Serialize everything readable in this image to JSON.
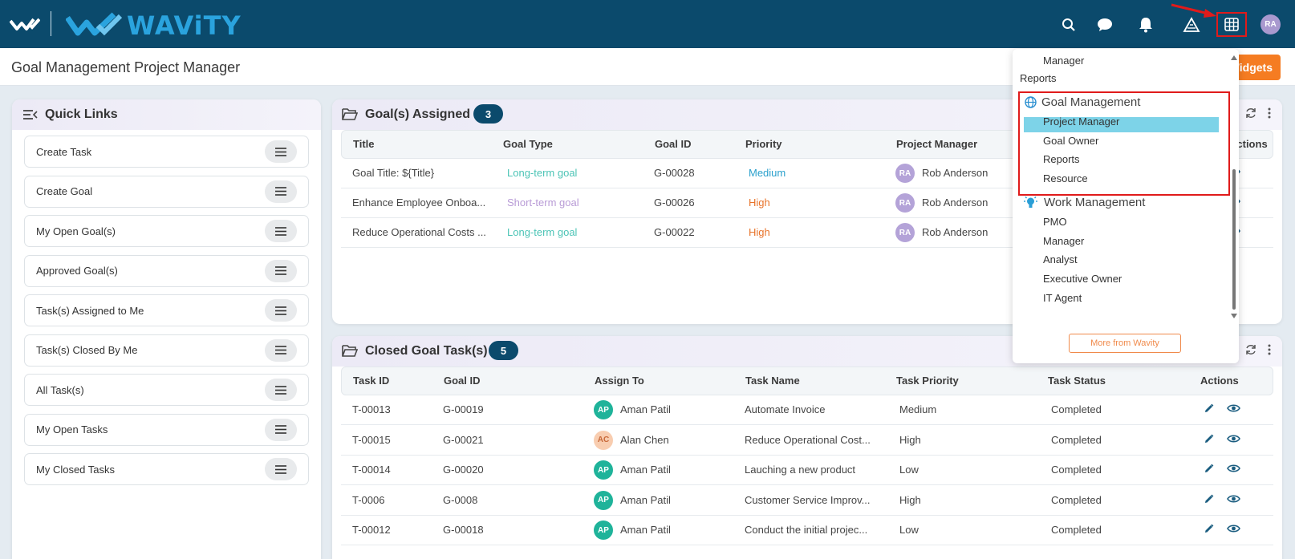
{
  "header": {
    "brand": "WAViTY",
    "icons": [
      "search-icon",
      "chat-icon",
      "bell-icon",
      "alert-triangle-icon",
      "grid-icon"
    ],
    "avatar_initials": "RA"
  },
  "subheader": {
    "page_title": "Goal Management Project Manager",
    "widgets_label": "Widgets"
  },
  "quick_links": {
    "title": "Quick Links",
    "items": [
      "Create Task",
      "Create Goal",
      "My Open Goal(s)",
      "Approved Goal(s)",
      "Task(s) Assigned to Me",
      "Task(s) Closed By Me",
      "All Task(s)",
      "My Open Tasks",
      "My Closed Tasks"
    ]
  },
  "goals_panel": {
    "title": "Goal(s) Assigned",
    "count": "3",
    "columns": [
      "Title",
      "Goal Type",
      "Goal ID",
      "Priority",
      "Project Manager",
      "Actions"
    ],
    "rows": [
      {
        "title": "Goal Title: ${Title}",
        "type": "Long-term goal",
        "id": "G-00028",
        "priority": "Medium",
        "pm_initials": "RA",
        "pm": "Rob Anderson"
      },
      {
        "title": "Enhance Employee Onboa...",
        "type": "Short-term goal",
        "id": "G-00026",
        "priority": "High",
        "pm_initials": "RA",
        "pm": "Rob Anderson"
      },
      {
        "title": "Reduce Operational Costs ...",
        "type": "Long-term goal",
        "id": "G-00022",
        "priority": "High",
        "pm_initials": "RA",
        "pm": "Rob Anderson"
      }
    ]
  },
  "tasks_panel": {
    "title": "Closed Goal Task(s)",
    "count": "5",
    "columns": [
      "Task ID",
      "Goal ID",
      "Assign To",
      "Task Name",
      "Task Priority",
      "Task Status",
      "Actions"
    ],
    "rows": [
      {
        "task_id": "T-00013",
        "goal_id": "G-00019",
        "initials": "AP",
        "assignee": "Aman Patil",
        "name": "Automate Invoice",
        "priority": "Medium",
        "status": "Completed"
      },
      {
        "task_id": "T-00015",
        "goal_id": "G-00021",
        "initials": "AC",
        "assignee": "Alan Chen",
        "name": "Reduce Operational Cost...",
        "priority": "High",
        "status": "Completed"
      },
      {
        "task_id": "T-00014",
        "goal_id": "G-00020",
        "initials": "AP",
        "assignee": "Aman Patil",
        "name": "Lauching a new product",
        "priority": "Low",
        "status": "Completed"
      },
      {
        "task_id": "T-0006",
        "goal_id": "G-0008",
        "initials": "AP",
        "assignee": "Aman Patil",
        "name": "Customer Service Improv...",
        "priority": "High",
        "status": "Completed"
      },
      {
        "task_id": "T-00012",
        "goal_id": "G-00018",
        "initials": "AP",
        "assignee": "Aman Patil",
        "name": "Conduct the initial projec...",
        "priority": "Low",
        "status": "Completed"
      }
    ]
  },
  "app_menu": {
    "top_items": [
      "Manager",
      "Reports"
    ],
    "goal_group": "Goal Management",
    "goal_items": [
      "Project Manager",
      "Goal Owner",
      "Reports",
      "Resource"
    ],
    "work_group": "Work Management",
    "work_items": [
      "PMO",
      "Manager",
      "Analyst",
      "Executive Owner",
      "IT Agent"
    ],
    "more_label": "More from Wavity"
  },
  "colors": {
    "header": "#0b4a6c",
    "accent": "#f57c22",
    "long_term": "#4cc4b6",
    "short_term": "#b89bd6",
    "medium": "#2aa0cc",
    "high": "#e8732a",
    "highlight": "#7dd3e8"
  }
}
